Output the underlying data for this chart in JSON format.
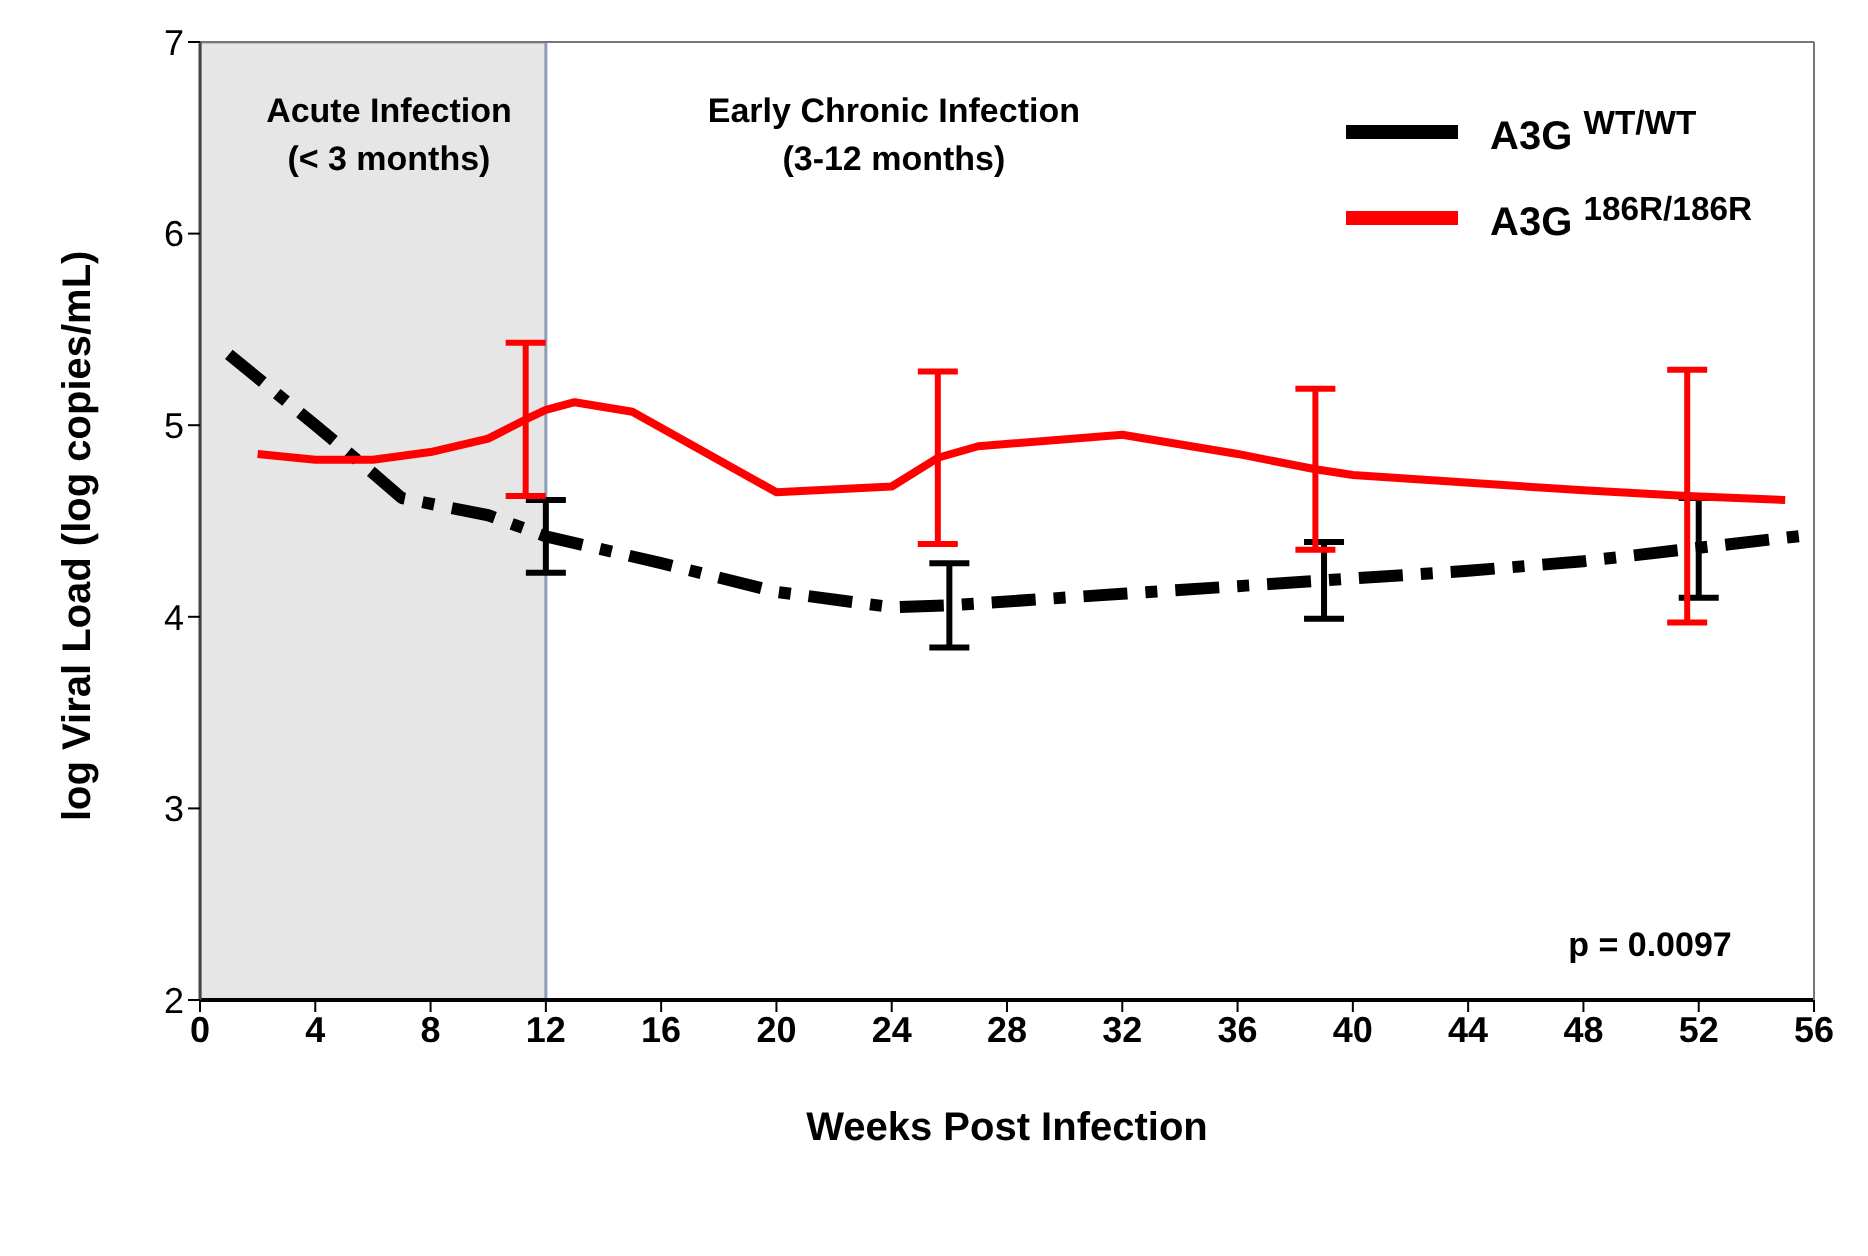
{
  "chart_data": {
    "type": "line",
    "xlabel": "Weeks Post Infection",
    "ylabel": "log Viral Load (log copies/mL)",
    "xlim": [
      0,
      56
    ],
    "xticks": [
      0,
      4,
      8,
      12,
      16,
      20,
      24,
      28,
      32,
      36,
      40,
      44,
      48,
      52,
      56
    ],
    "ylim": [
      2,
      7
    ],
    "yticks": [
      2,
      3,
      4,
      5,
      6,
      7
    ],
    "legend": "top right",
    "marker": "none",
    "series": [
      {
        "name": "A3G $^{WT/WT}$",
        "color": "#000000",
        "line_style": "dashed",
        "x": [
          1,
          4,
          6,
          7,
          10,
          12,
          16,
          20,
          24,
          26,
          28,
          32,
          36,
          39,
          44,
          48,
          52,
          56
        ],
        "values": [
          5.37,
          5.0,
          4.75,
          4.62,
          4.53,
          4.42,
          4.28,
          4.13,
          4.05,
          4.06,
          4.08,
          4.12,
          4.16,
          4.19,
          4.24,
          4.29,
          4.36,
          4.43
        ],
        "errors": [
          null,
          null,
          null,
          null,
          null,
          0.19,
          null,
          null,
          null,
          0.22,
          null,
          null,
          null,
          0.2,
          null,
          null,
          0.26,
          null
        ]
      },
      {
        "name": "A3G $^{186R/186R}$",
        "color": "#ff0000",
        "line_style": "solid",
        "x": [
          2,
          4,
          6,
          8,
          10,
          11.3,
          12,
          13,
          15,
          20,
          24,
          25.6,
          27,
          32,
          36,
          38.7,
          40,
          48,
          51.6,
          55
        ],
        "values": [
          4.85,
          4.82,
          4.82,
          4.86,
          4.93,
          5.03,
          5.08,
          5.12,
          5.07,
          4.65,
          4.68,
          4.83,
          4.89,
          4.95,
          4.85,
          4.77,
          4.74,
          4.66,
          4.63,
          4.61
        ],
        "errors": [
          null,
          null,
          null,
          null,
          null,
          0.4,
          null,
          null,
          null,
          null,
          null,
          0.45,
          null,
          null,
          null,
          0.42,
          null,
          null,
          0.66,
          null
        ]
      }
    ],
    "bands": [
      {
        "axis": "x",
        "from": 0,
        "to": 12,
        "color": "#e6e6e6"
      }
    ],
    "annotations": [
      "Acute Infection\n(< 3 months)",
      "Early Chronic Infection\n(3-12 months)",
      "p = 0.0097"
    ]
  }
}
